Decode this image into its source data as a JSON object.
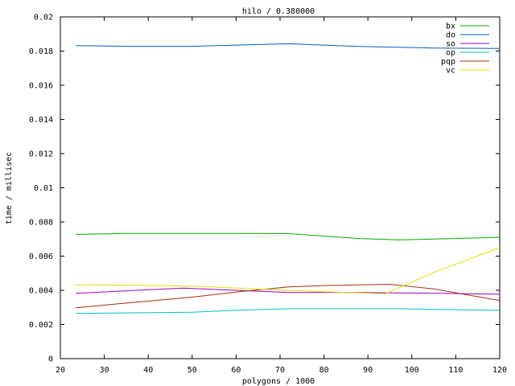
{
  "chart_data": {
    "type": "line",
    "title": "hilo / 0.380000",
    "xlabel": "polygons / 1000",
    "ylabel": "time / millisec",
    "xlim": [
      20,
      120
    ],
    "ylim": [
      0,
      0.02
    ],
    "xticks": [
      "20",
      "30",
      "40",
      "50",
      "60",
      "70",
      "80",
      "90",
      "100",
      "110",
      "120"
    ],
    "yticks": [
      "0",
      "0.002",
      "0.004",
      "0.006",
      "0.008",
      "0.01",
      "0.012",
      "0.014",
      "0.016",
      "0.018",
      "0.02"
    ],
    "grid": false,
    "legend_position": "top-right",
    "series": [
      {
        "name": "bx",
        "color": "#00b000",
        "points": [
          [
            23.5,
            0.00727
          ],
          [
            35,
            0.00733
          ],
          [
            50,
            0.00733
          ],
          [
            60,
            0.00733
          ],
          [
            72,
            0.00732
          ],
          [
            80,
            0.00717
          ],
          [
            88,
            0.00703
          ],
          [
            97,
            0.00695
          ],
          [
            105,
            0.007
          ],
          [
            120,
            0.0071
          ]
        ]
      },
      {
        "name": "do",
        "color": "#0060c0",
        "points": [
          [
            23.5,
            0.01832
          ],
          [
            35,
            0.01828
          ],
          [
            50,
            0.01828
          ],
          [
            60,
            0.01835
          ],
          [
            72,
            0.01843
          ],
          [
            80,
            0.01835
          ],
          [
            88,
            0.01827
          ],
          [
            97,
            0.01822
          ],
          [
            105,
            0.01818
          ],
          [
            120,
            0.01815
          ]
        ]
      },
      {
        "name": "so",
        "color": "#a000c0",
        "points": [
          [
            23.5,
            0.00382
          ],
          [
            35,
            0.00397
          ],
          [
            48,
            0.00413
          ],
          [
            60,
            0.004
          ],
          [
            72,
            0.00387
          ],
          [
            80,
            0.00388
          ],
          [
            88,
            0.00387
          ],
          [
            97,
            0.00385
          ],
          [
            105,
            0.00383
          ],
          [
            120,
            0.00377
          ]
        ]
      },
      {
        "name": "op",
        "color": "#00c0c0",
        "points": [
          [
            23.5,
            0.00265
          ],
          [
            35,
            0.00268
          ],
          [
            50,
            0.00272
          ],
          [
            60,
            0.00283
          ],
          [
            72,
            0.00292
          ],
          [
            80,
            0.00292
          ],
          [
            88,
            0.00292
          ],
          [
            97,
            0.00292
          ],
          [
            105,
            0.00288
          ],
          [
            120,
            0.00283
          ]
        ]
      },
      {
        "name": "pqp",
        "color": "#a03010",
        "points": [
          [
            23.5,
            0.00298
          ],
          [
            35,
            0.00325
          ],
          [
            50,
            0.0036
          ],
          [
            60,
            0.0039
          ],
          [
            72,
            0.0042
          ],
          [
            80,
            0.00428
          ],
          [
            88,
            0.00432
          ],
          [
            95,
            0.00435
          ],
          [
            105,
            0.00408
          ],
          [
            120,
            0.0034
          ]
        ]
      },
      {
        "name": "vc",
        "color": "#e0e000",
        "points": [
          [
            23.5,
            0.00432
          ],
          [
            35,
            0.0043
          ],
          [
            50,
            0.00425
          ],
          [
            60,
            0.00413
          ],
          [
            72,
            0.004
          ],
          [
            80,
            0.00392
          ],
          [
            88,
            0.00385
          ],
          [
            94,
            0.0038
          ],
          [
            105,
            0.00505
          ],
          [
            120,
            0.0065
          ]
        ]
      }
    ]
  }
}
